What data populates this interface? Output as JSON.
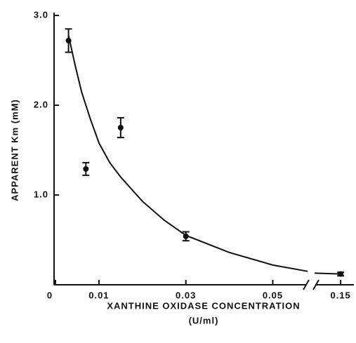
{
  "chart_data": {
    "type": "scatter",
    "ylabel": "APPARENT Km (mM)",
    "xlabel": "XANTHINE OXIDASE CONCENTRATION",
    "xlabel_unit": "(U/ml)",
    "xlim": [
      0,
      0.152
    ],
    "xbreak": [
      0.058,
      0.145
    ],
    "xticks": [
      0,
      0.01,
      0.03,
      0.05,
      0.15
    ],
    "ylim": [
      0,
      3.0
    ],
    "yticks": [
      {
        "value": 1,
        "label": "1.0"
      },
      {
        "value": 2,
        "label": "2.0"
      },
      {
        "value": 3,
        "label": "3.0"
      }
    ],
    "color": "#111111",
    "series": [
      {
        "x": [
          0.003,
          0.007,
          0.015,
          0.03,
          0.15
        ],
        "values": [
          2.72,
          1.29,
          1.75,
          0.54,
          0.12
        ],
        "errors": [
          0.13,
          0.07,
          0.11,
          0.05,
          0.02
        ]
      }
    ],
    "fit": {
      "x": [
        0.003,
        0.0045,
        0.006,
        0.008,
        0.01,
        0.0125,
        0.015,
        0.02,
        0.025,
        0.03,
        0.04,
        0.05,
        0.058,
        null,
        0.145,
        0.15
      ],
      "values": [
        2.78,
        2.45,
        2.15,
        1.85,
        1.58,
        1.36,
        1.2,
        0.93,
        0.72,
        0.55,
        0.36,
        0.22,
        0.15,
        null,
        0.13,
        0.12
      ]
    }
  }
}
